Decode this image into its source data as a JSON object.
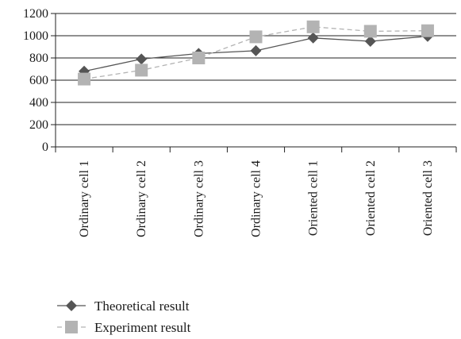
{
  "chart_data": {
    "type": "line",
    "title": "",
    "xlabel": "",
    "ylabel": "",
    "categories": [
      "Ordinary cell 1",
      "Ordinary cell 2",
      "Ordinary cell 3",
      "Ordinary cell 4",
      "Oriented cell 1",
      "Oriented cell 2",
      "Oriented cell 3"
    ],
    "ylim": [
      0,
      1200
    ],
    "yticks": [
      0,
      200,
      400,
      600,
      800,
      1000,
      1200
    ],
    "grid": "horizontal",
    "legend_position": "bottom-left",
    "series": [
      {
        "name": "Theoretical result",
        "values": [
          680,
          790,
          840,
          865,
          980,
          950,
          995
        ],
        "color": "#555555",
        "line_style": "solid",
        "marker": "diamond"
      },
      {
        "name": "Experiment result",
        "values": [
          610,
          690,
          800,
          990,
          1080,
          1040,
          1045
        ],
        "color": "#b3b3b3",
        "line_style": "dashed",
        "marker": "square"
      }
    ]
  }
}
